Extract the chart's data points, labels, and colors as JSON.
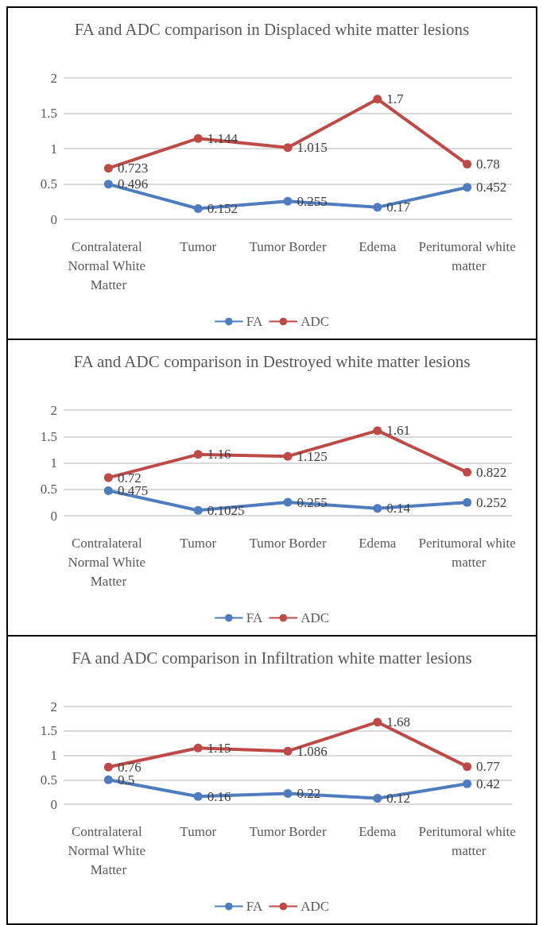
{
  "chart_data": [
    {
      "type": "line",
      "title": "FA and ADC comparison in Displaced white matter lesions",
      "categories": [
        "Contralateral Normal White Matter",
        "Tumor",
        "Tumor Border",
        "Edema",
        "Peritumoral white matter"
      ],
      "series": [
        {
          "name": "FA",
          "color": "#4f7bbf",
          "values": [
            0.496,
            0.152,
            0.255,
            0.17,
            0.452
          ]
        },
        {
          "name": "ADC",
          "color": "#bd4a47",
          "values": [
            0.723,
            1.144,
            1.015,
            1.7,
            0.78
          ]
        }
      ],
      "ylim": [
        0,
        2
      ],
      "yticks": [
        0,
        0.5,
        1,
        1.5,
        2
      ],
      "grid": "y",
      "legend": "bottom",
      "marker": "circle",
      "data_labels": true
    },
    {
      "type": "line",
      "title": "FA and ADC comparison in Destroyed white matter lesions",
      "categories": [
        "Contralateral Normal White Matter",
        "Tumor",
        "Tumor Border",
        "Edema",
        "Peritumoral white matter"
      ],
      "series": [
        {
          "name": "FA",
          "color": "#4f7bbf",
          "values": [
            0.475,
            0.1025,
            0.255,
            0.14,
            0.252
          ]
        },
        {
          "name": "ADC",
          "color": "#bd4a47",
          "values": [
            0.72,
            1.16,
            1.125,
            1.61,
            0.822
          ]
        }
      ],
      "ylim": [
        0,
        2
      ],
      "yticks": [
        0,
        0.5,
        1,
        1.5,
        2
      ],
      "grid": "y",
      "legend": "bottom",
      "marker": "circle",
      "data_labels": true
    },
    {
      "type": "line",
      "title": "FA and ADC comparison in Infiltration white matter lesions",
      "categories": [
        "Contralateral Normal White Matter",
        "Tumor",
        "Tumor Border",
        "Edema",
        "Peritumoral white matter"
      ],
      "series": [
        {
          "name": "FA",
          "color": "#4f7bbf",
          "values": [
            0.5,
            0.16,
            0.22,
            0.12,
            0.42
          ]
        },
        {
          "name": "ADC",
          "color": "#bd4a47",
          "values": [
            0.76,
            1.15,
            1.086,
            1.68,
            0.77
          ]
        }
      ],
      "ylim": [
        0,
        2
      ],
      "yticks": [
        0,
        0.5,
        1,
        1.5,
        2
      ],
      "grid": "y",
      "legend": "bottom",
      "marker": "circle",
      "data_labels": true
    }
  ]
}
